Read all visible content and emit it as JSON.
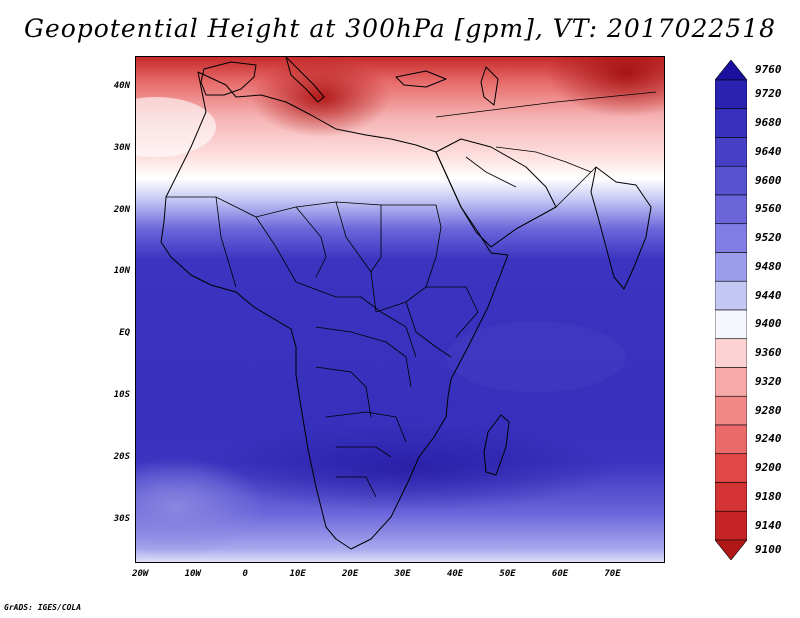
{
  "title": "Geopotential Height at 300hPa [gpm], VT: 2017022518",
  "credit": "GrADS: IGES/COLA",
  "map": {
    "lon_range": [
      -21,
      80
    ],
    "lat_range": [
      -37,
      45
    ],
    "lat_ticks": [
      {
        "value": 40,
        "label": "40N"
      },
      {
        "value": 30,
        "label": "30N"
      },
      {
        "value": 20,
        "label": "20N"
      },
      {
        "value": 10,
        "label": "10N"
      },
      {
        "value": 0,
        "label": "EQ"
      },
      {
        "value": -10,
        "label": "10S"
      },
      {
        "value": -20,
        "label": "20S"
      },
      {
        "value": -30,
        "label": "30S"
      }
    ],
    "lon_ticks": [
      {
        "value": -20,
        "label": "20W"
      },
      {
        "value": -10,
        "label": "10W"
      },
      {
        "value": 0,
        "label": "0"
      },
      {
        "value": 10,
        "label": "10E"
      },
      {
        "value": 20,
        "label": "20E"
      },
      {
        "value": 30,
        "label": "30E"
      },
      {
        "value": 40,
        "label": "40E"
      },
      {
        "value": 50,
        "label": "50E"
      },
      {
        "value": 60,
        "label": "60E"
      },
      {
        "value": 70,
        "label": "70E"
      }
    ]
  },
  "colorbar": {
    "levels": [
      9760,
      9720,
      9680,
      9640,
      9600,
      9560,
      9520,
      9480,
      9440,
      9400,
      9360,
      9320,
      9280,
      9240,
      9200,
      9180,
      9140,
      9100
    ],
    "colors": [
      "#1c10a0",
      "#2a22b0",
      "#3630bc",
      "#4640c6",
      "#5752d0",
      "#6a66da",
      "#807ee4",
      "#9c9cec",
      "#c6c8f4",
      "#f6f6ff",
      "#fcd2d2",
      "#f8aaaa",
      "#f08888",
      "#ea6a6a",
      "#e04848",
      "#d43434",
      "#c42424",
      "#b01818"
    ]
  }
}
